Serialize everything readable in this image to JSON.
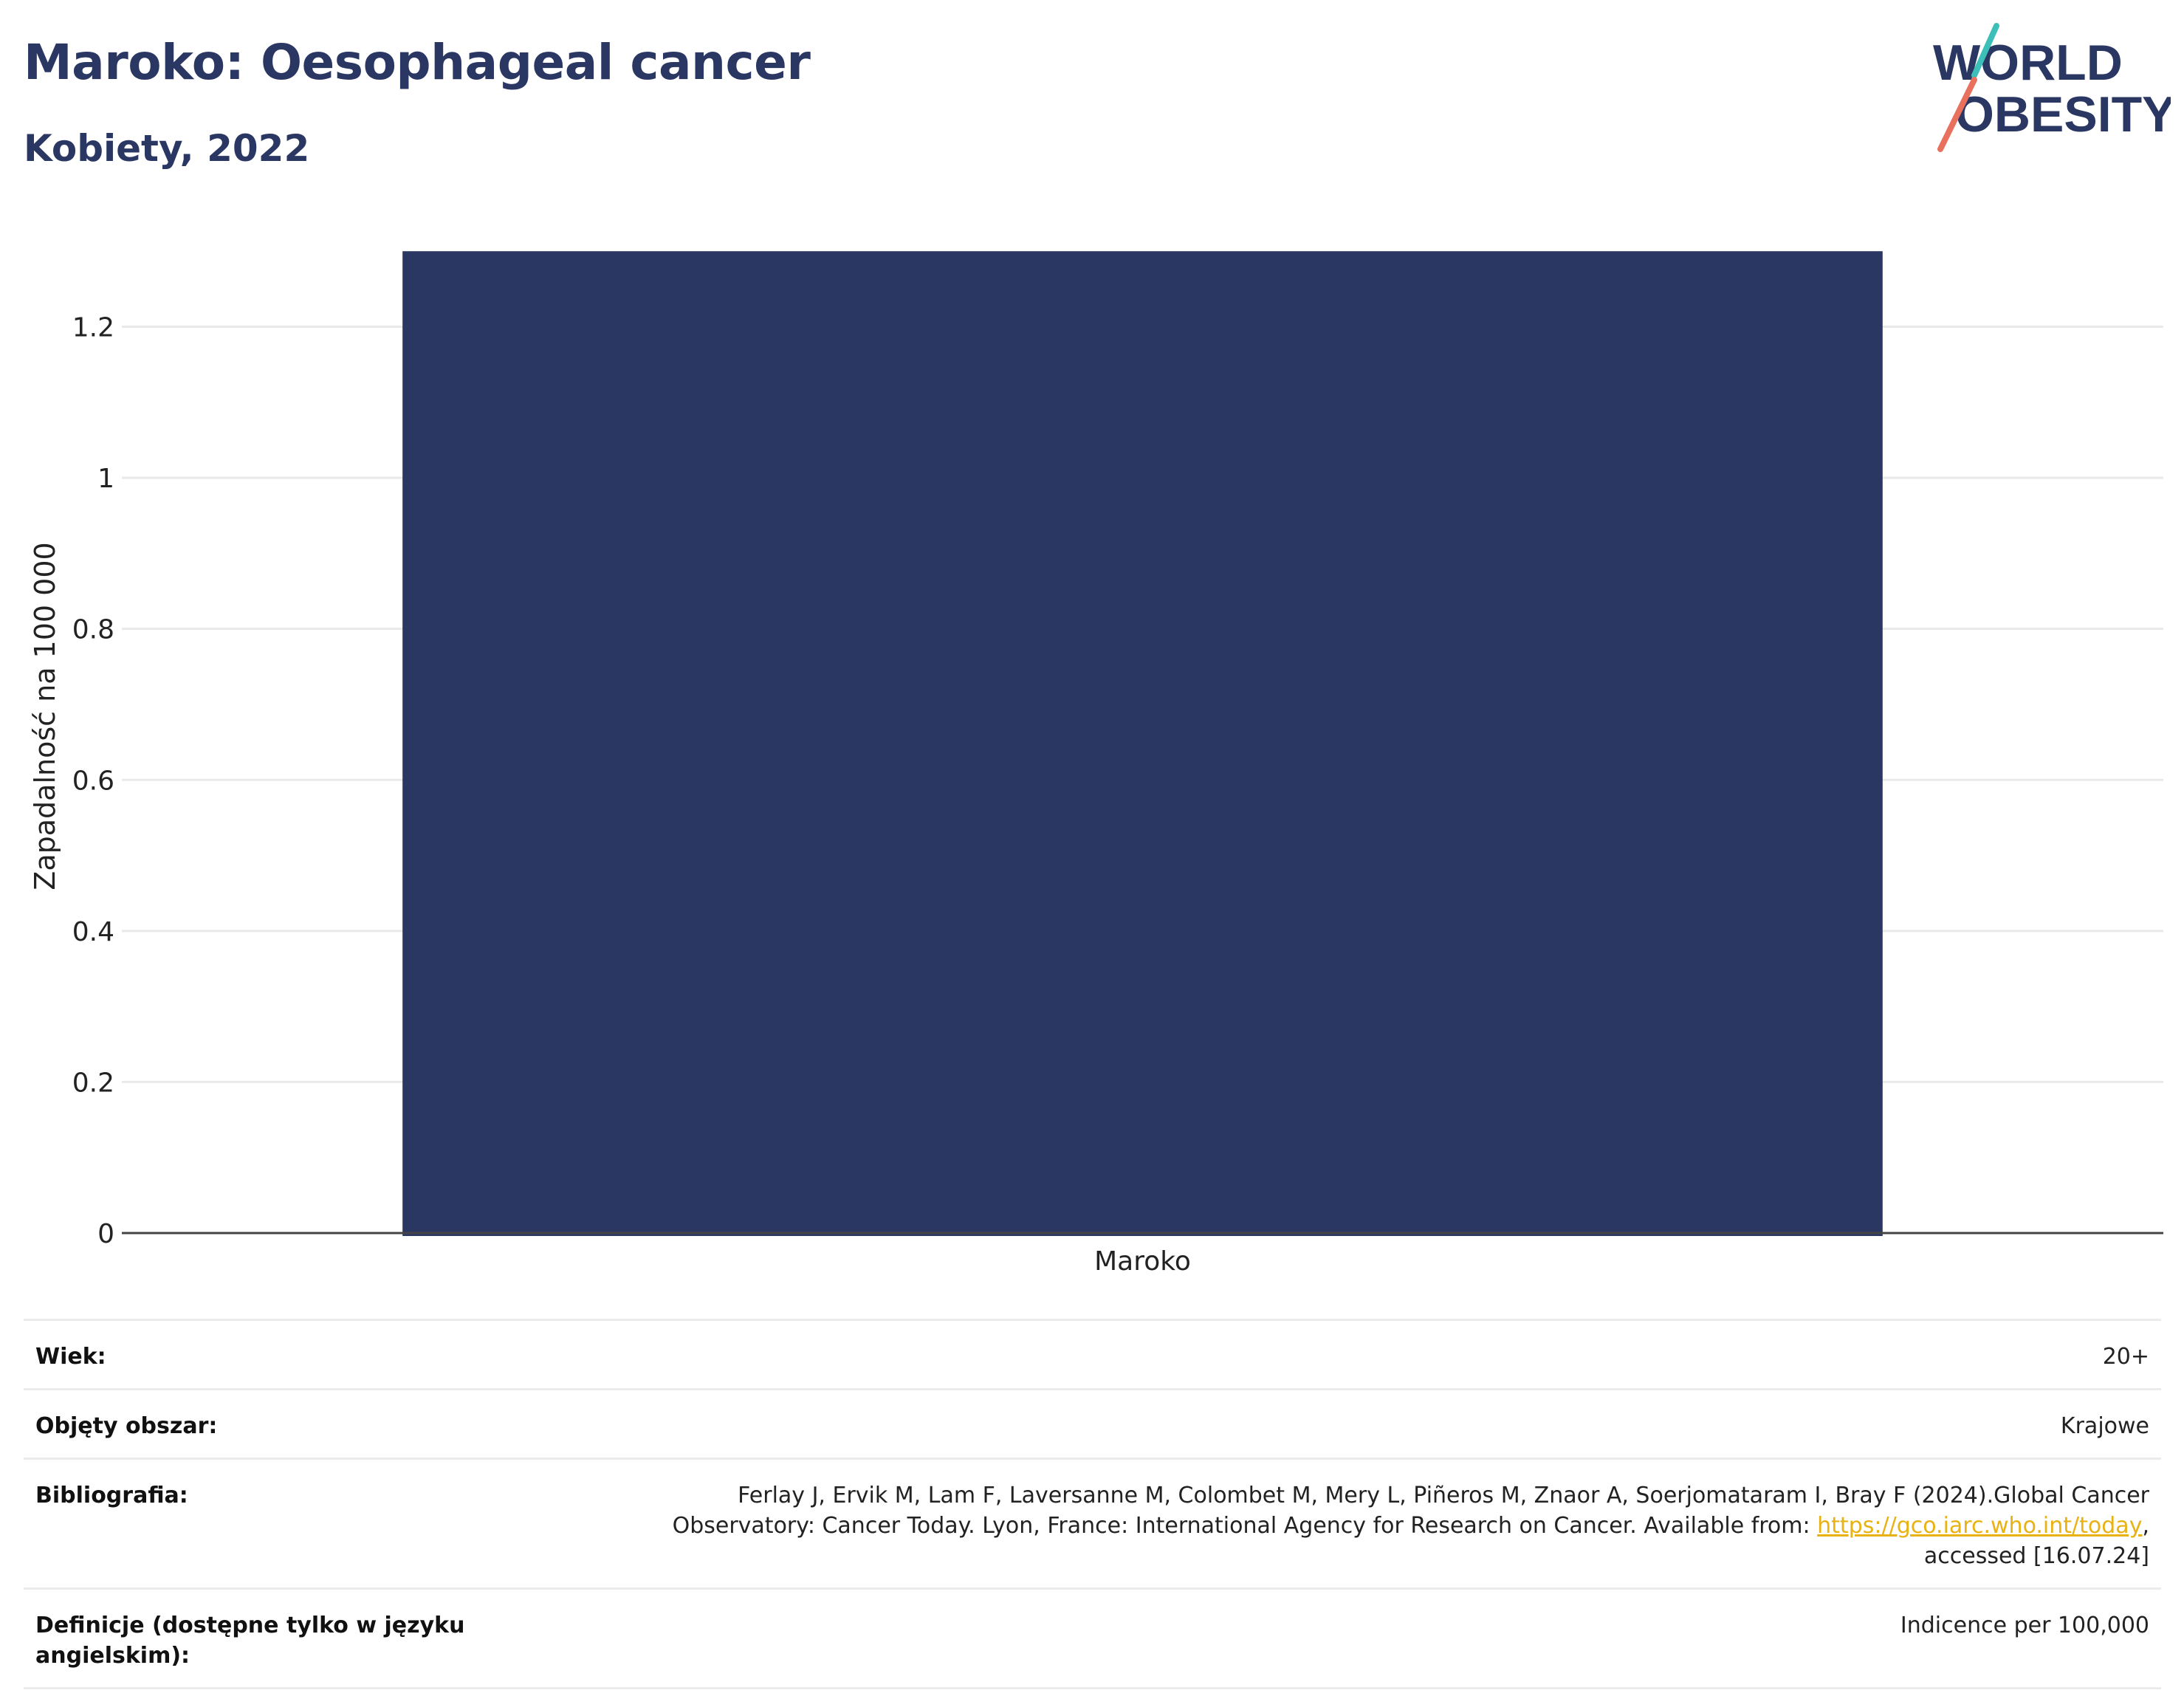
{
  "header": {
    "title": "Maroko: Oesophageal cancer",
    "subtitle": "Kobiety, 2022"
  },
  "logo": {
    "line1": "WORLD",
    "line2": "OBESITY",
    "colors": {
      "text": "#2b3763",
      "slash_top": "#3cbfb8",
      "slash_bottom": "#e8705c"
    }
  },
  "chart_data": {
    "type": "bar",
    "categories": [
      "Maroko"
    ],
    "values": [
      1.3
    ],
    "ylabel": "Zapadalność na 100 000",
    "xlabel": "",
    "ylim": [
      0,
      1.31
    ],
    "yticks": [
      0,
      0.2,
      0.4,
      0.6,
      0.8,
      1,
      1.2
    ],
    "ytick_labels": [
      "0",
      "0.2",
      "0.4",
      "0.6",
      "0.8",
      "1",
      "1.2"
    ],
    "grid": true,
    "bar_color": "#2b3763"
  },
  "info": {
    "age_label": "Wiek:",
    "age_value": "20+",
    "area_label": "Objęty obszar:",
    "area_value": "Krajowe",
    "bib_label": "Bibliografia:",
    "bib_text_1": "Ferlay J, Ervik M, Lam F, Laversanne M, Colombet M, Mery L, Piñeros M, Znaor A, Soerjomataram I, Bray F (2024).Global Cancer",
    "bib_text_2": "Observatory: Cancer Today. Lyon, France: International Agency for Research on Cancer. Available from: ",
    "bib_link": "https://gco.iarc.who.int/today",
    "bib_text_3": ",",
    "bib_text_4": "accessed [16.07.24]",
    "def_label": "Definicje (dostępne tylko w języku angielskim):",
    "def_value": "Indicence per 100,000",
    "link_color": "#e9b213"
  }
}
